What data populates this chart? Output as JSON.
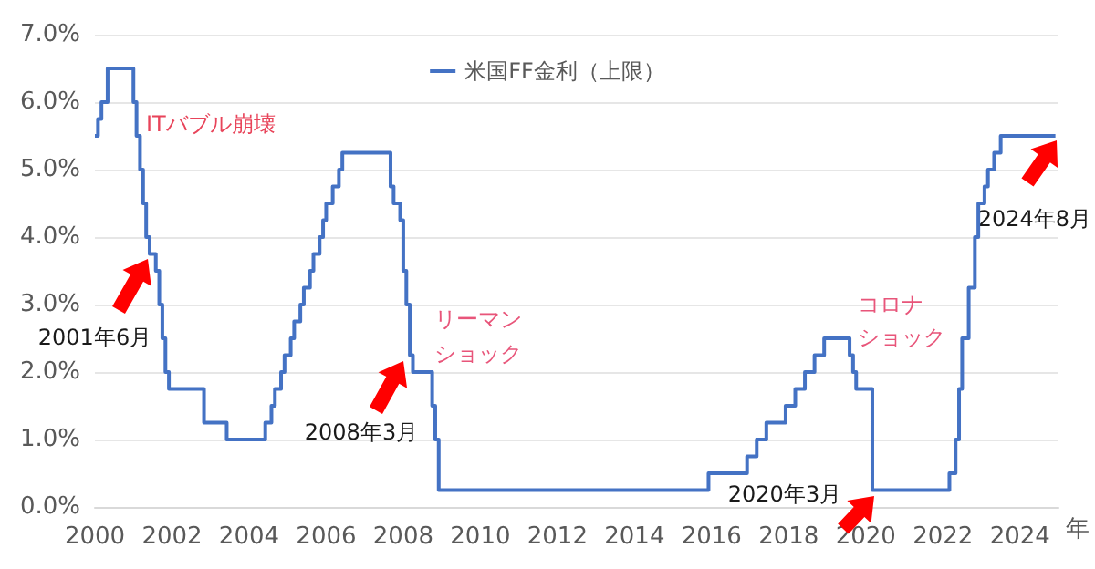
{
  "chart_data": {
    "type": "step",
    "xlabel": "年",
    "x": [
      2000.0,
      2000.08,
      2000.17,
      2000.33,
      2001.0,
      2001.08,
      2001.17,
      2001.25,
      2001.33,
      2001.42,
      2001.58,
      2001.67,
      2001.75,
      2001.83,
      2001.92,
      2002.83,
      2003.42,
      2004.42,
      2004.58,
      2004.67,
      2004.83,
      2004.92,
      2005.08,
      2005.17,
      2005.33,
      2005.42,
      2005.58,
      2005.67,
      2005.83,
      2005.92,
      2006.0,
      2006.17,
      2006.33,
      2006.42,
      2007.67,
      2007.75,
      2007.92,
      2008.0,
      2008.08,
      2008.17,
      2008.25,
      2008.75,
      2008.83,
      2008.92,
      2015.92,
      2016.92,
      2017.17,
      2017.42,
      2017.92,
      2018.17,
      2018.42,
      2018.67,
      2018.92,
      2019.58,
      2019.67,
      2019.75,
      2020.17,
      2022.17,
      2022.33,
      2022.42,
      2022.5,
      2022.67,
      2022.83,
      2022.92,
      2023.08,
      2023.17,
      2023.33,
      2023.5,
      2024.92
    ],
    "series": [
      {
        "name": "米国FF金利（上限）",
        "color": "#4472c4",
        "values": [
          5.5,
          5.75,
          6.0,
          6.5,
          6.0,
          5.5,
          5.0,
          4.5,
          4.0,
          3.75,
          3.5,
          3.0,
          2.5,
          2.0,
          1.75,
          1.25,
          1.0,
          1.25,
          1.5,
          1.75,
          2.0,
          2.25,
          2.5,
          2.75,
          3.0,
          3.25,
          3.5,
          3.75,
          4.0,
          4.25,
          4.5,
          4.75,
          5.0,
          5.25,
          4.75,
          4.5,
          4.25,
          3.5,
          3.0,
          2.25,
          2.0,
          1.5,
          1.0,
          0.25,
          0.5,
          0.75,
          1.0,
          1.25,
          1.5,
          1.75,
          2.0,
          2.25,
          2.5,
          2.25,
          2.0,
          1.75,
          0.25,
          0.5,
          1.0,
          1.75,
          2.5,
          3.25,
          4.0,
          4.5,
          4.75,
          5.0,
          5.25,
          5.5,
          5.5
        ]
      }
    ],
    "xlim": [
      2000,
      2025
    ],
    "xticks": [
      2000,
      2002,
      2004,
      2006,
      2008,
      2010,
      2012,
      2014,
      2016,
      2018,
      2020,
      2022,
      2024
    ],
    "ylim": [
      0,
      7
    ],
    "yticks": [
      {
        "value": 0,
        "label": "0.0%"
      },
      {
        "value": 1,
        "label": "1.0%"
      },
      {
        "value": 2,
        "label": "2.0%"
      },
      {
        "value": 3,
        "label": "3.0%"
      },
      {
        "value": 4,
        "label": "4.0%"
      },
      {
        "value": 5,
        "label": "5.0%"
      },
      {
        "value": 6,
        "label": "6.0%"
      },
      {
        "value": 7,
        "label": "7.0%"
      }
    ],
    "grid": "y",
    "legend": "top",
    "marker": "none",
    "line_style": "solid",
    "annotations": [
      "ITバブル崩壊",
      "2001年6月",
      "リーマン",
      "ショック",
      "2008年3月",
      "コロナ",
      "ショック",
      "2020年3月",
      "2024年8月"
    ]
  }
}
